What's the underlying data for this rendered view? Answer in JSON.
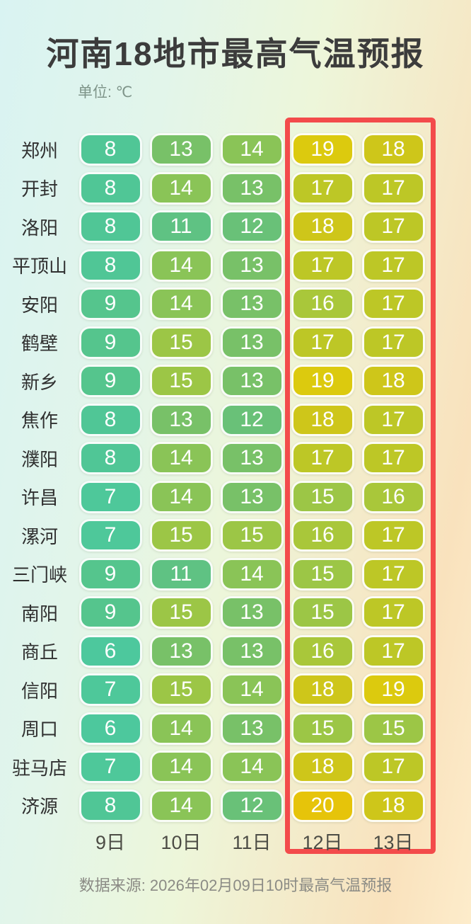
{
  "title": "河南18地市最高气温预报",
  "unit_label": "单位: ℃",
  "footer": "数据来源: 2026年02月09日10时最高气温预报",
  "highlight": {
    "columns": [
      "12日",
      "13日"
    ],
    "border_color": "#f34b4b"
  },
  "temperature_colors": {
    "6": "#4dc89d",
    "7": "#4ec89a",
    "8": "#50c696",
    "9": "#55c58d",
    "11": "#5fc283",
    "12": "#69c178",
    "13": "#78c168",
    "14": "#8ac457",
    "15": "#9cc646",
    "16": "#a9c73a",
    "17": "#bdc726",
    "18": "#cec61a",
    "19": "#dcca0e",
    "20": "#e6c40a"
  },
  "chart_data": {
    "type": "heatmap",
    "title": "河南18地市最高气温预报",
    "unit": "℃",
    "x": [
      "9日",
      "10日",
      "11日",
      "12日",
      "13日"
    ],
    "series": [
      {
        "name": "郑州",
        "values": [
          8,
          13,
          14,
          19,
          18
        ]
      },
      {
        "name": "开封",
        "values": [
          8,
          14,
          13,
          17,
          17
        ]
      },
      {
        "name": "洛阳",
        "values": [
          8,
          11,
          12,
          18,
          17
        ]
      },
      {
        "name": "平顶山",
        "values": [
          8,
          14,
          13,
          17,
          17
        ]
      },
      {
        "name": "安阳",
        "values": [
          9,
          14,
          13,
          16,
          17
        ]
      },
      {
        "name": "鹤壁",
        "values": [
          9,
          15,
          13,
          17,
          17
        ]
      },
      {
        "name": "新乡",
        "values": [
          9,
          15,
          13,
          19,
          18
        ]
      },
      {
        "name": "焦作",
        "values": [
          8,
          13,
          12,
          18,
          17
        ]
      },
      {
        "name": "濮阳",
        "values": [
          8,
          14,
          13,
          17,
          17
        ]
      },
      {
        "name": "许昌",
        "values": [
          7,
          14,
          13,
          15,
          16
        ]
      },
      {
        "name": "漯河",
        "values": [
          7,
          15,
          15,
          16,
          17
        ]
      },
      {
        "name": "三门峡",
        "values": [
          9,
          11,
          14,
          15,
          17
        ]
      },
      {
        "name": "南阳",
        "values": [
          9,
          15,
          13,
          15,
          17
        ]
      },
      {
        "name": "商丘",
        "values": [
          6,
          13,
          13,
          16,
          17
        ]
      },
      {
        "name": "信阳",
        "values": [
          7,
          15,
          14,
          18,
          19
        ]
      },
      {
        "name": "周口",
        "values": [
          6,
          14,
          13,
          15,
          15
        ]
      },
      {
        "name": "驻马店",
        "values": [
          7,
          14,
          14,
          18,
          17
        ]
      },
      {
        "name": "济源",
        "values": [
          8,
          14,
          12,
          20,
          18
        ]
      }
    ],
    "highlighted_columns": [
      "12日",
      "13日"
    ],
    "source": "数据来源: 2026年02月09日10时最高气温预报",
    "legend_position": "none",
    "grid": false
  }
}
